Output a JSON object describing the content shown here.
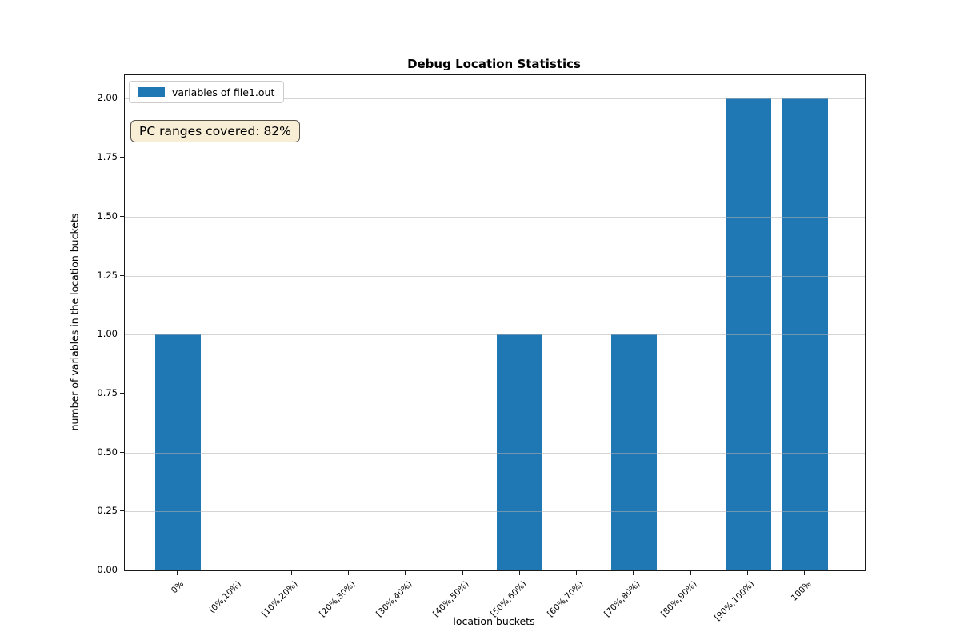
{
  "chart": {
    "title": "Debug Location Statistics",
    "xlabel": "location buckets",
    "ylabel": "number of variables in the location buckets",
    "legend": {
      "label": "variables of file1.out",
      "swatch_color": "#1f77b4"
    },
    "annotation": {
      "text": "PC ranges covered: 82%"
    }
  },
  "chart_data": {
    "type": "bar",
    "title": "Debug Location Statistics",
    "xlabel": "location buckets",
    "ylabel": "number of variables in the location buckets",
    "categories": [
      "0%",
      "(0%,10%)",
      "[10%,20%)",
      "[20%,30%)",
      "[30%,40%)",
      "[40%,50%)",
      "[50%,60%)",
      "[60%,70%)",
      "[70%,80%)",
      "[80%,90%)",
      "[90%,100%)",
      "100%"
    ],
    "series": [
      {
        "name": "variables of file1.out",
        "values": [
          1,
          0,
          0,
          0,
          0,
          0,
          1,
          0,
          1,
          0,
          2,
          2
        ]
      }
    ],
    "bar_color": "#1f77b4",
    "ylim": [
      0,
      2.1
    ],
    "ytick_values": [
      0,
      0.25,
      0.5,
      0.75,
      1.0,
      1.25,
      1.5,
      1.75,
      2.0
    ],
    "ytick_labels": [
      "0.00",
      "0.25",
      "0.50",
      "0.75",
      "1.00",
      "1.25",
      "1.50",
      "1.75",
      "2.00"
    ],
    "grid": "horizontal-gridlines-on",
    "legend_position": "upper left",
    "x_tick_rotation_deg": 45,
    "annotation": "PC ranges covered: 82%"
  }
}
